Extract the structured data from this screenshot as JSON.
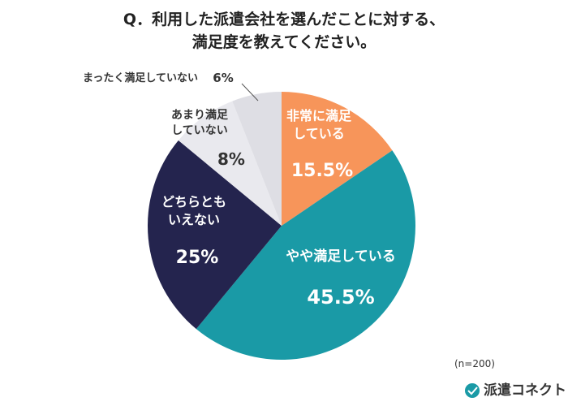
{
  "chart_data": {
    "type": "pie",
    "title": [
      "Q．利用した派遣会社を選んだことに対する、",
      "満足度を教えてください。"
    ],
    "categories": [
      "非常に満足している",
      "やや満足している",
      "どちらともいえない",
      "あまり満足していない",
      "まったく満足していない"
    ],
    "values": [
      15.5,
      45.5,
      25,
      8,
      6
    ],
    "value_labels": [
      "15.5%",
      "45.5%",
      "25%",
      "8%",
      "6%"
    ],
    "colors": [
      "#f7955a",
      "#1a9aa6",
      "#24244e",
      "#e9e9ee",
      "#dedee4"
    ],
    "note": "(n=200)",
    "brand": "派遣コネクト"
  }
}
